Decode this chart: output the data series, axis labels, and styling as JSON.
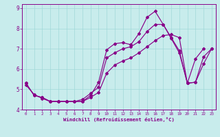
{
  "xlabel": "Windchill (Refroidissement éolien,°C)",
  "background_color": "#c8ecec",
  "grid_color": "#a0d8d8",
  "line_color": "#880088",
  "xlim": [
    -0.5,
    23.5
  ],
  "ylim": [
    4.0,
    9.2
  ],
  "xticks": [
    0,
    1,
    2,
    3,
    4,
    5,
    6,
    7,
    8,
    9,
    10,
    11,
    12,
    13,
    14,
    15,
    16,
    17,
    18,
    19,
    20,
    21,
    22,
    23
  ],
  "yticks": [
    4,
    5,
    6,
    7,
    8,
    9
  ],
  "line1_x": [
    0,
    1,
    2,
    3,
    4,
    5,
    6,
    7,
    8,
    9,
    10,
    11,
    12,
    13,
    14,
    15,
    16,
    17,
    18,
    19,
    20,
    21,
    22
  ],
  "line1_y": [
    5.3,
    4.7,
    4.6,
    4.4,
    4.4,
    4.4,
    4.4,
    4.4,
    4.7,
    5.35,
    6.95,
    7.25,
    7.3,
    7.2,
    7.75,
    8.55,
    8.85,
    8.2,
    7.5,
    6.8,
    5.3,
    6.5,
    7.0
  ],
  "line2_x": [
    0,
    1,
    2,
    3,
    4,
    5,
    6,
    7,
    8,
    9,
    10,
    11,
    12,
    13,
    14,
    15,
    16,
    17,
    18,
    19,
    20,
    21,
    22,
    23
  ],
  "line2_y": [
    5.3,
    4.7,
    4.6,
    4.4,
    4.4,
    4.4,
    4.4,
    4.5,
    4.8,
    5.1,
    6.55,
    6.8,
    7.0,
    7.1,
    7.35,
    7.85,
    8.2,
    8.2,
    7.55,
    6.9,
    5.3,
    5.35,
    6.6,
    7.0
  ],
  "line3_x": [
    0,
    1,
    2,
    3,
    4,
    5,
    6,
    7,
    8,
    9,
    10,
    11,
    12,
    13,
    14,
    15,
    16,
    17,
    18,
    19,
    20,
    21,
    22,
    23
  ],
  "line3_y": [
    5.2,
    4.75,
    4.55,
    4.4,
    4.4,
    4.4,
    4.4,
    4.4,
    4.6,
    4.85,
    5.8,
    6.2,
    6.4,
    6.55,
    6.8,
    7.1,
    7.4,
    7.65,
    7.7,
    7.55,
    5.3,
    5.35,
    6.25,
    7.0
  ]
}
